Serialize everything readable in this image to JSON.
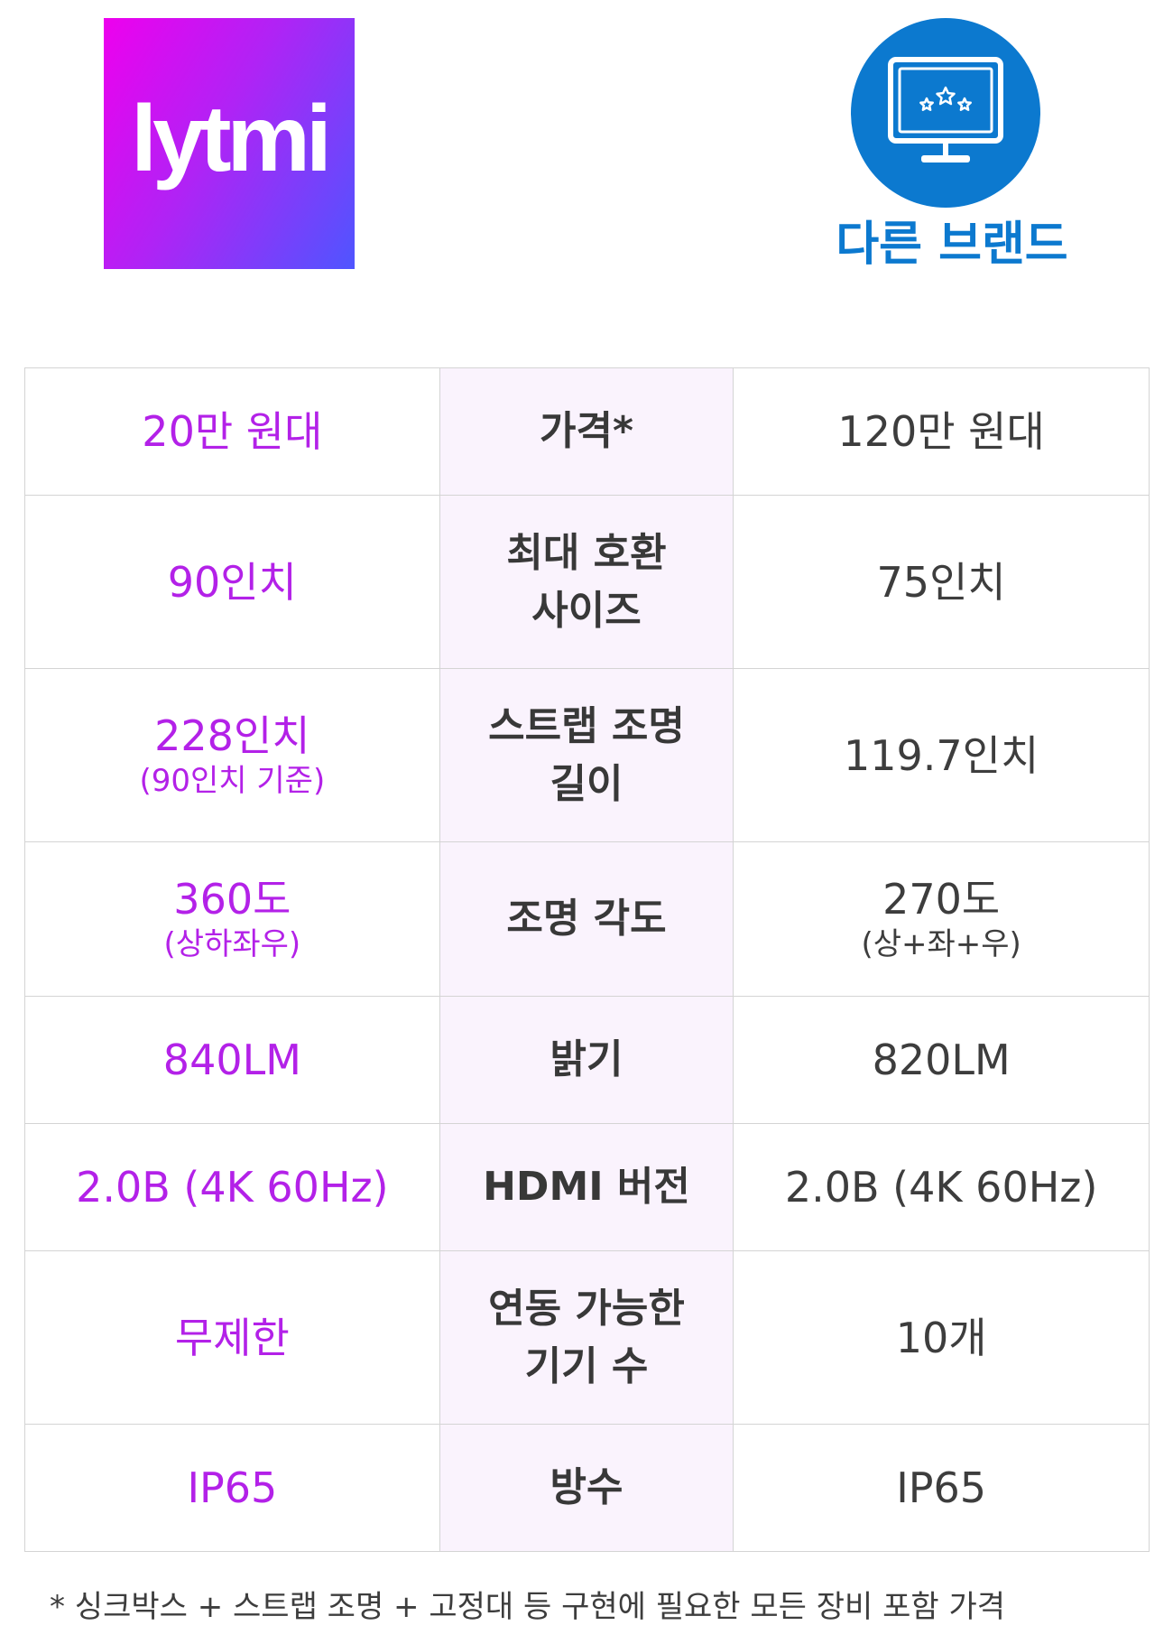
{
  "logo": {
    "text": "lytmi",
    "gradient_colors": [
      "#ee00ee",
      "#4f55ff"
    ]
  },
  "competitor": {
    "icon": "monitor-stars-icon",
    "label": "다른 브랜드",
    "color": "#0c79cf"
  },
  "colors": {
    "lytmi_text": "#b321e8",
    "spec_bg": "#faf3fd",
    "other_text": "#3d3d3d"
  },
  "table": {
    "rows": [
      {
        "lytmi": "20만 원대",
        "lytmi_sub": "",
        "spec": "가격*",
        "other": "120만 원대",
        "other_sub": ""
      },
      {
        "lytmi": "90인치",
        "lytmi_sub": "",
        "spec_line1": "최대 호환",
        "spec_line2": "사이즈",
        "other": "75인치",
        "other_sub": ""
      },
      {
        "lytmi": "228인치",
        "lytmi_sub": "(90인치 기준)",
        "spec_line1": "스트랩 조명",
        "spec_line2": "길이",
        "other": "119.7인치",
        "other_sub": ""
      },
      {
        "lytmi": "360도",
        "lytmi_sub": "(상하좌우)",
        "spec": "조명 각도",
        "other": "270도",
        "other_sub": "(상+좌+우)"
      },
      {
        "lytmi": "840LM",
        "lytmi_sub": "",
        "spec": "밝기",
        "other": "820LM",
        "other_sub": ""
      },
      {
        "lytmi": "2.0B (4K 60Hz)",
        "lytmi_sub": "",
        "spec": "HDMI 버전",
        "other": "2.0B (4K 60Hz)",
        "other_sub": ""
      },
      {
        "lytmi": "무제한",
        "lytmi_sub": "",
        "spec_line1": "연동 가능한",
        "spec_line2": "기기 수",
        "other": "10개",
        "other_sub": ""
      },
      {
        "lytmi": "IP65",
        "lytmi_sub": "",
        "spec": "방수",
        "other": "IP65",
        "other_sub": ""
      }
    ]
  },
  "footnote": "* 싱크박스 + 스트랩 조명 + 고정대 등 구현에 필요한 모든 장비 포함 가격"
}
